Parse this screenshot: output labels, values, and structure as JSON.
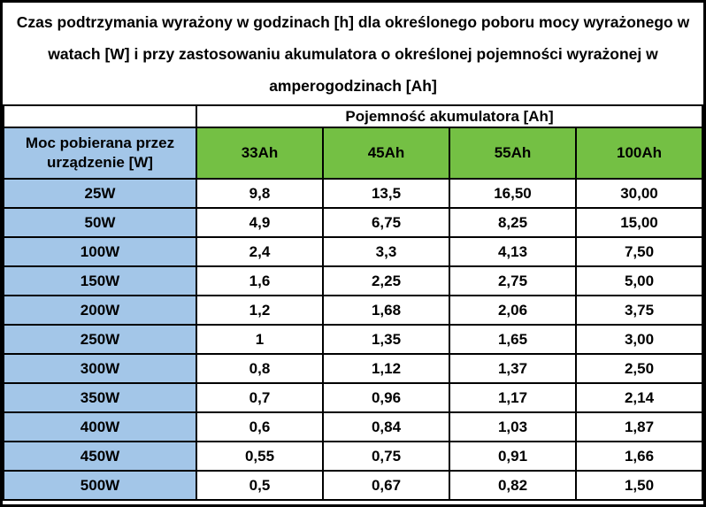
{
  "title": "Czas podtrzymania wyrażony w godzinach [h] dla określonego poboru mocy wyrażonego w watach [W] i przy zastosowaniu akumulatora o określonej pojemności wyrażonej w amperogodzinach [Ah]",
  "colors": {
    "header_green": "#74C044",
    "row_blue": "#A3C6E8",
    "border_black": "#000000",
    "background_white": "#FFFFFF"
  },
  "table": {
    "capacity_header": "Pojemność akumulatora [Ah]",
    "power_header": "Moc pobierana przez urządzenie [W]",
    "capacity_columns": [
      "33Ah",
      "45Ah",
      "55Ah",
      "100Ah"
    ],
    "rows": [
      {
        "power": "25W",
        "values": [
          "9,8",
          "13,5",
          "16,50",
          "30,00"
        ]
      },
      {
        "power": "50W",
        "values": [
          "4,9",
          "6,75",
          "8,25",
          "15,00"
        ]
      },
      {
        "power": "100W",
        "values": [
          "2,4",
          "3,3",
          "4,13",
          "7,50"
        ]
      },
      {
        "power": "150W",
        "values": [
          "1,6",
          "2,25",
          "2,75",
          "5,00"
        ]
      },
      {
        "power": "200W",
        "values": [
          "1,2",
          "1,68",
          "2,06",
          "3,75"
        ]
      },
      {
        "power": "250W",
        "values": [
          "1",
          "1,35",
          "1,65",
          "3,00"
        ]
      },
      {
        "power": "300W",
        "values": [
          "0,8",
          "1,12",
          "1,37",
          "2,50"
        ]
      },
      {
        "power": "350W",
        "values": [
          "0,7",
          "0,96",
          "1,17",
          "2,14"
        ]
      },
      {
        "power": "400W",
        "values": [
          "0,6",
          "0,84",
          "1,03",
          "1,87"
        ]
      },
      {
        "power": "450W",
        "values": [
          "0,55",
          "0,75",
          "0,91",
          "1,66"
        ]
      },
      {
        "power": "500W",
        "values": [
          "0,5",
          "0,67",
          "0,82",
          "1,50"
        ]
      }
    ]
  }
}
